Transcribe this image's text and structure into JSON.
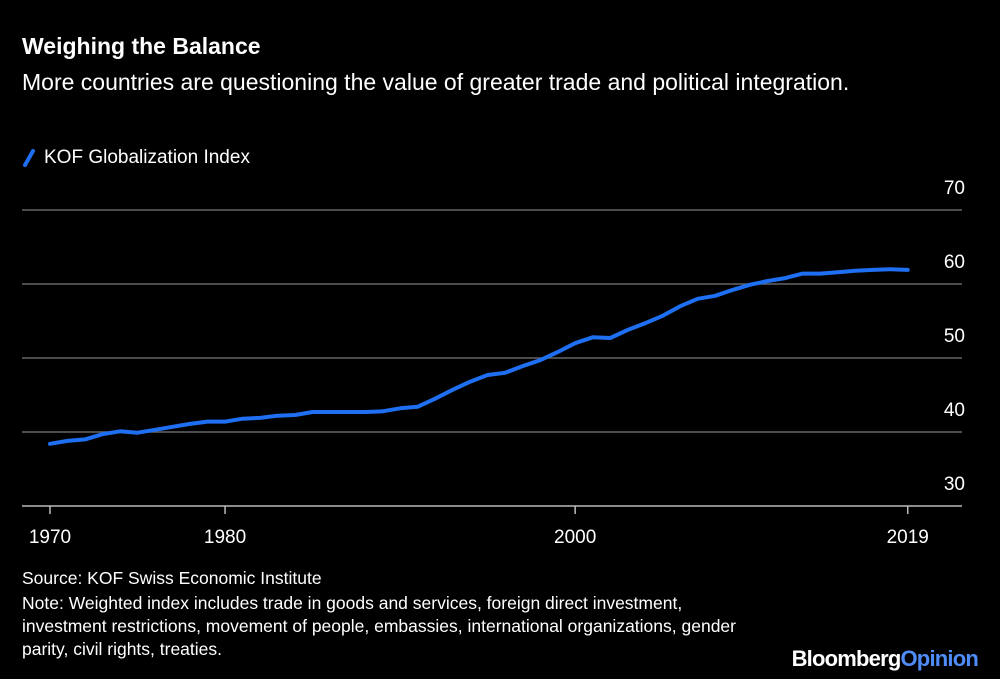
{
  "chart_data": {
    "type": "line",
    "title": "Weighing the Balance",
    "subtitle": "More countries are questioning the value of greater trade and political integration.",
    "x": [
      1970,
      1971,
      1972,
      1973,
      1974,
      1975,
      1976,
      1977,
      1978,
      1979,
      1980,
      1981,
      1982,
      1983,
      1984,
      1985,
      1986,
      1987,
      1988,
      1989,
      1990,
      1991,
      1992,
      1993,
      1994,
      1995,
      1996,
      1997,
      1998,
      1999,
      2000,
      2001,
      2002,
      2003,
      2004,
      2005,
      2006,
      2007,
      2008,
      2009,
      2010,
      2011,
      2012,
      2013,
      2014,
      2015,
      2016,
      2017,
      2018,
      2019
    ],
    "series": [
      {
        "name": "KOF Globalization Index",
        "color": "#1f6ff2",
        "values": [
          38.4,
          38.8,
          39.0,
          39.7,
          40.1,
          39.9,
          40.3,
          40.7,
          41.1,
          41.4,
          41.4,
          41.8,
          41.9,
          42.2,
          42.3,
          42.7,
          42.7,
          42.7,
          42.7,
          42.8,
          43.2,
          43.4,
          44.5,
          45.7,
          46.8,
          47.7,
          48.0,
          48.9,
          49.7,
          50.8,
          52.0,
          52.8,
          52.7,
          53.8,
          54.7,
          55.7,
          57.0,
          58.0,
          58.4,
          59.2,
          59.9,
          60.4,
          60.8,
          61.4,
          61.4,
          61.6,
          61.8,
          61.9,
          62.0,
          61.9
        ]
      }
    ],
    "xlim": [
      1968.4,
      2022.1
    ],
    "xticks": [
      1970,
      1980,
      2000,
      2019
    ],
    "ylim": [
      30,
      70
    ],
    "yticks": [
      30,
      40,
      50,
      60,
      70
    ],
    "grid": true,
    "source": "Source: KOF Swiss Economic Institute",
    "note": "Note: Weighted index includes trade in goods and services, foreign direct investment, investment restrictions, movement of people, embassies, international organizations, gender parity, civil rights, treaties."
  },
  "branding": {
    "name": "Bloomberg",
    "suffix": "Opinion"
  }
}
